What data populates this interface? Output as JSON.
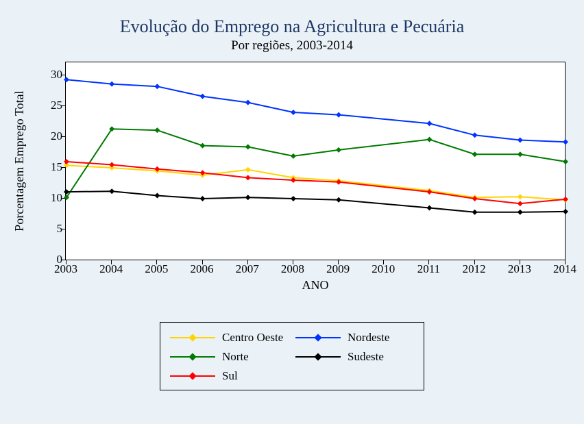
{
  "title": "Evolução do Emprego na Agricultura e Pecuária",
  "subtitle": "Por regiões, 2003-2014",
  "y_axis_label": "Porcentagem Emprego Total",
  "x_axis_label": "ANO",
  "chart": {
    "type": "line",
    "background_color": "#ffffff",
    "page_background": "#eaf2f8",
    "border_color": "#000000",
    "title_color": "#1f3864",
    "title_fontsize": 26,
    "subtitle_fontsize": 19,
    "label_fontsize": 18,
    "tick_fontsize": 17,
    "font_family": "Times New Roman",
    "line_width": 2,
    "marker_style": "diamond",
    "marker_size": 8,
    "xlim": [
      2003,
      2014
    ],
    "ylim": [
      0,
      32
    ],
    "xticks": [
      2003,
      2004,
      2005,
      2006,
      2007,
      2008,
      2009,
      2010,
      2011,
      2012,
      2013,
      2014
    ],
    "yticks": [
      0,
      5,
      10,
      15,
      20,
      25,
      30
    ],
    "x_values": [
      2003,
      2004,
      2005,
      2006,
      2007,
      2008,
      2009,
      2011,
      2012,
      2013,
      2014
    ],
    "series": [
      {
        "name": "Centro Oeste",
        "color": "#ffd400",
        "values": [
          15.4,
          15.0,
          14.5,
          13.8,
          14.7,
          13.4,
          12.9,
          11.3,
          10.2,
          10.3,
          9.8
        ]
      },
      {
        "name": "Nordeste",
        "color": "#0033ff",
        "values": [
          29.3,
          28.6,
          28.2,
          26.6,
          25.6,
          24.0,
          23.6,
          22.2,
          20.3,
          19.5,
          19.2
        ]
      },
      {
        "name": "Norte",
        "color": "#007a00",
        "values": [
          10.2,
          21.3,
          21.1,
          18.6,
          18.4,
          16.9,
          17.9,
          19.6,
          17.2,
          17.2,
          16.0
        ]
      },
      {
        "name": "Sudeste",
        "color": "#000000",
        "values": [
          11.1,
          11.2,
          10.5,
          10.0,
          10.2,
          10.0,
          9.8,
          8.5,
          7.8,
          7.8,
          7.9
        ]
      },
      {
        "name": "Sul",
        "color": "#ff0000",
        "values": [
          16.0,
          15.5,
          14.8,
          14.2,
          13.4,
          13.0,
          12.7,
          11.1,
          10.0,
          9.2,
          9.9
        ]
      }
    ]
  },
  "legend": {
    "order": [
      "Centro Oeste",
      "Nordeste",
      "Norte",
      "Sudeste",
      "Sul"
    ],
    "columns": 2,
    "border_color": "#000000",
    "background_color": "#eaf2f8"
  }
}
